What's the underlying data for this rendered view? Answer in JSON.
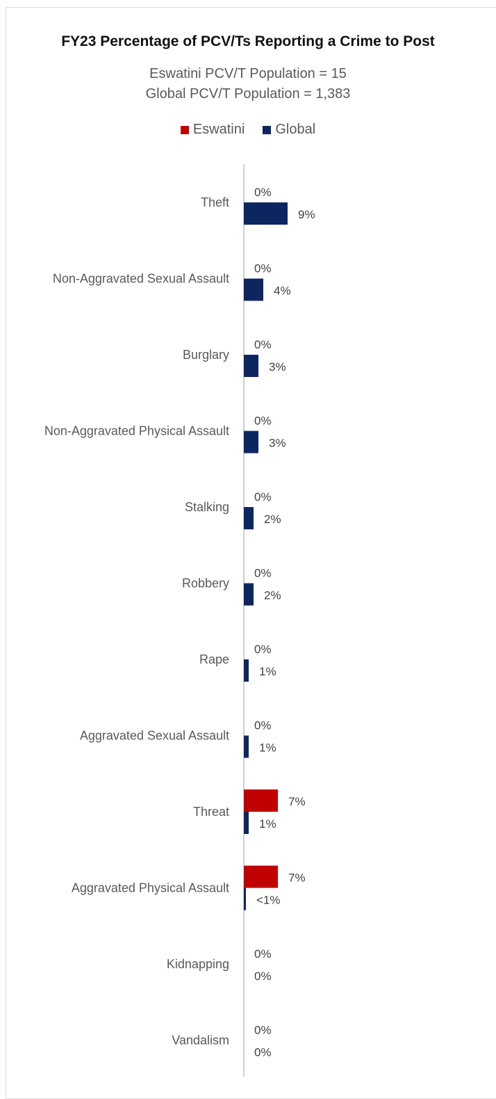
{
  "chart_data": {
    "type": "bar",
    "orientation": "horizontal",
    "title": "FY23 Percentage of PCV/Ts Reporting a Crime to Post",
    "subtitle_lines": [
      "Eswatini PCV/T Population = 15",
      "Global PCV/T Population = 1,383"
    ],
    "legend_position": "top",
    "categories": [
      "Theft",
      "Non-Aggravated Sexual Assault",
      "Burglary",
      "Non-Aggravated Physical Assault",
      "Stalking",
      "Robbery",
      "Rape",
      "Aggravated Sexual Assault",
      "Threat",
      "Aggravated Physical Assault",
      "Kidnapping",
      "Vandalism"
    ],
    "series": [
      {
        "name": "Eswatini",
        "color": "#c00000",
        "values": [
          0,
          0,
          0,
          0,
          0,
          0,
          0,
          0,
          7,
          7,
          0,
          0
        ],
        "labels": [
          "0%",
          "0%",
          "0%",
          "0%",
          "0%",
          "0%",
          "0%",
          "0%",
          "7%",
          "7%",
          "0%",
          "0%"
        ]
      },
      {
        "name": "Global",
        "color": "#0e2660",
        "values": [
          9,
          4,
          3,
          3,
          2,
          2,
          1,
          1,
          1,
          0.4,
          0,
          0
        ],
        "labels": [
          "9%",
          "4%",
          "3%",
          "3%",
          "2%",
          "2%",
          "1%",
          "1%",
          "1%",
          "<1%",
          "0%",
          "0%"
        ]
      }
    ],
    "grid": false
  }
}
